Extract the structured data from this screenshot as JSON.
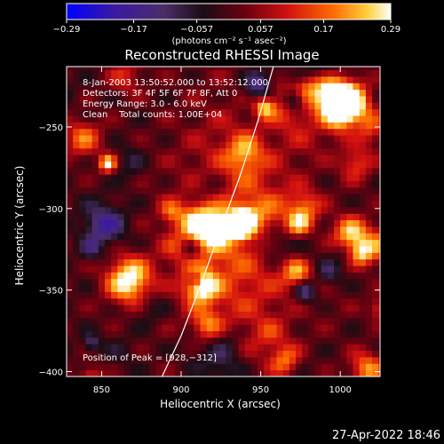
{
  "chart_data": {
    "type": "heatmap",
    "title": "Reconstructed RHESSI Image",
    "xlabel": "Heliocentric X (arcsec)",
    "ylabel": "Heliocentric Y (arcsec)",
    "xlim": [
      828,
      1025
    ],
    "ylim": [
      -403,
      -213
    ],
    "x_ticks": [
      850,
      900,
      950,
      1000
    ],
    "x_tick_labels": [
      "850",
      "900",
      "950",
      "1000"
    ],
    "y_ticks": [
      -250,
      -300,
      -350,
      -400
    ],
    "y_tick_labels": [
      "−250",
      "−300",
      "−350",
      "−400"
    ],
    "colorbar": {
      "range": [
        -0.29,
        0.29
      ],
      "ticks": [
        -0.29,
        -0.17,
        -0.057,
        0.057,
        0.17,
        0.29
      ],
      "tick_labels": [
        "−0.29",
        "−0.17",
        "−0.057",
        "0.057",
        "0.17",
        "0.29"
      ],
      "unit_label": "(photons cm⁻² s⁻¹ asec⁻²)"
    },
    "annotations": [
      "8-Jan-2003 13:50:52.000 to 13:52:12.000",
      "Detectors: 3F 4F 5F 6F 7F 8F, Att 0",
      "Energy Range: 3.0 - 6.0 keV",
      "Clean    Total counts: 1.00E+04"
    ],
    "peak_label": "Position of Peak = [928,−312]",
    "peak": {
      "x": 928,
      "y": -312,
      "value": 0.29
    },
    "limb_points": [
      [
        888,
        -403
      ],
      [
        900,
        -378
      ],
      [
        913,
        -345
      ],
      [
        925,
        -312
      ],
      [
        937,
        -280
      ],
      [
        948,
        -247
      ],
      [
        958,
        -213
      ]
    ],
    "grid": false,
    "colormap": "red-temperature"
  },
  "footer": {
    "timestamp": "27-Apr-2022 18:46"
  }
}
